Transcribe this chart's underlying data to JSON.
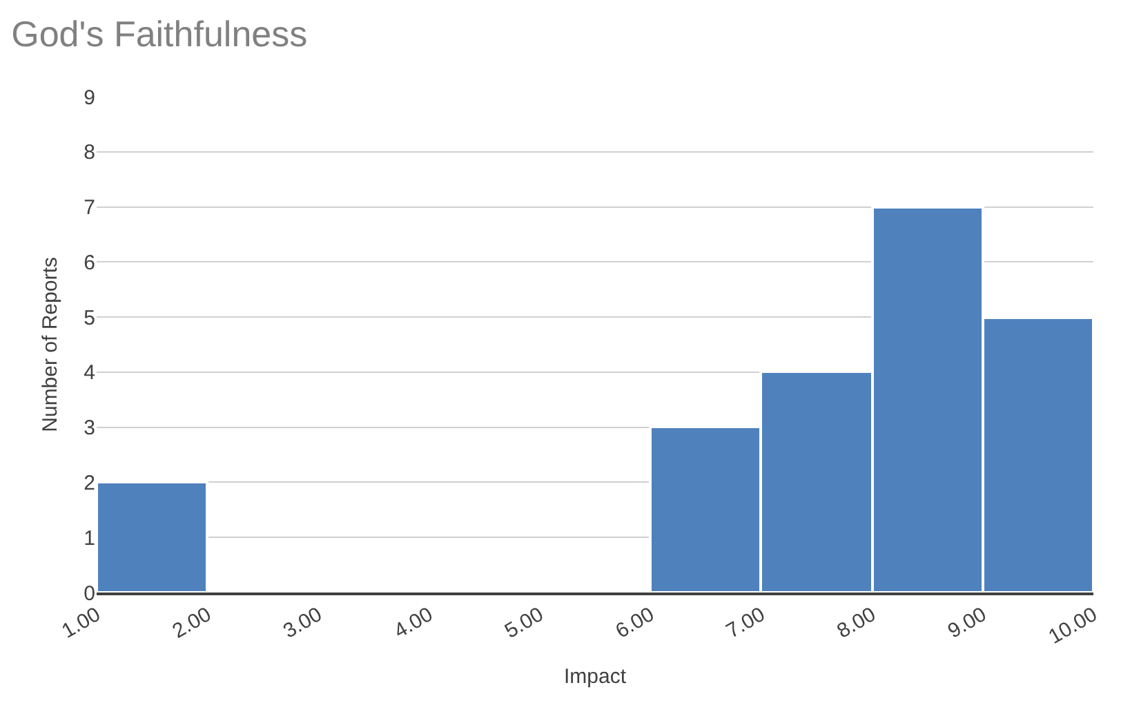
{
  "chart_data": {
    "type": "histogram",
    "title": "God's Faithfulness",
    "xlabel": "Impact",
    "ylabel": "Number of Reports",
    "bins": [
      1,
      2,
      3,
      4,
      5,
      6,
      7,
      8,
      9,
      10
    ],
    "values": [
      2,
      0,
      0,
      0,
      0,
      3,
      4,
      7,
      5
    ],
    "color": "#4f81bd",
    "xlim": [
      1,
      10
    ],
    "xticks": [
      {
        "value": 1,
        "label": "1.00"
      },
      {
        "value": 2,
        "label": "2.00"
      },
      {
        "value": 3,
        "label": "3.00"
      },
      {
        "value": 4,
        "label": "4.00"
      },
      {
        "value": 5,
        "label": "5.00"
      },
      {
        "value": 6,
        "label": "6.00"
      },
      {
        "value": 7,
        "label": "7.00"
      },
      {
        "value": 8,
        "label": "8.00"
      },
      {
        "value": 9,
        "label": "9.00"
      },
      {
        "value": 10,
        "label": "10.00"
      }
    ],
    "ylim": [
      0,
      9
    ],
    "yticks": [
      0,
      1,
      2,
      3,
      4,
      5,
      6,
      7,
      8,
      9
    ],
    "grid": "y",
    "legend": false
  }
}
